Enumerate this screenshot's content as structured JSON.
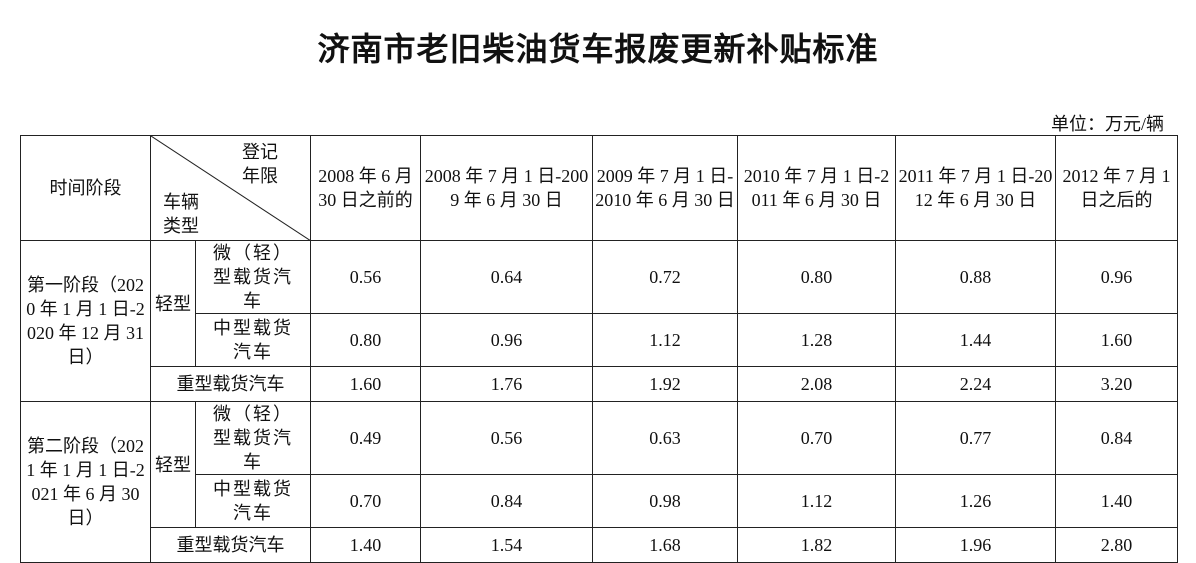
{
  "title": "济南市老旧柴油货车报废更新补贴标准",
  "unit": "单位：万元/辆",
  "header": {
    "time_period": "时间阶段",
    "reg_years": "登记年限",
    "vehicle_type": "车辆类型",
    "columns": [
      "2008 年 6 月 30 日之前的",
      "2008 年 7 月 1 日-2009 年 6 月 30 日",
      "2009 年 7 月 1 日-2010 年 6 月 30 日",
      "2010 年 7 月 1 日-2011 年 6 月 30 日",
      "2011 年 7 月 1 日-2012 年 6 月 30 日",
      "2012 年 7 月 1 日之后的"
    ]
  },
  "stages": [
    {
      "label": "第一阶段（2020 年 1 月 1 日-2020 年 12 月 31 日）",
      "light": "轻型",
      "rows": [
        {
          "type": "微（轻）型载货汽车",
          "values": [
            "0.56",
            "0.64",
            "0.72",
            "0.80",
            "0.88",
            "0.96"
          ]
        },
        {
          "type": "中型载货汽车",
          "values": [
            "0.80",
            "0.96",
            "1.12",
            "1.28",
            "1.44",
            "1.60"
          ]
        },
        {
          "type": "重型载货汽车",
          "values": [
            "1.60",
            "1.76",
            "1.92",
            "2.08",
            "2.24",
            "3.20"
          ]
        }
      ]
    },
    {
      "label": "第二阶段（2021 年 1 月 1 日-2021 年 6 月 30 日）",
      "light": "轻型",
      "rows": [
        {
          "type": "微（轻）型载货汽车",
          "values": [
            "0.49",
            "0.56",
            "0.63",
            "0.70",
            "0.77",
            "0.84"
          ]
        },
        {
          "type": "中型载货汽车",
          "values": [
            "0.70",
            "0.84",
            "0.98",
            "1.12",
            "1.26",
            "1.40"
          ]
        },
        {
          "type": "重型载货汽车",
          "values": [
            "1.40",
            "1.54",
            "1.68",
            "1.82",
            "1.96",
            "2.80"
          ]
        }
      ]
    }
  ]
}
